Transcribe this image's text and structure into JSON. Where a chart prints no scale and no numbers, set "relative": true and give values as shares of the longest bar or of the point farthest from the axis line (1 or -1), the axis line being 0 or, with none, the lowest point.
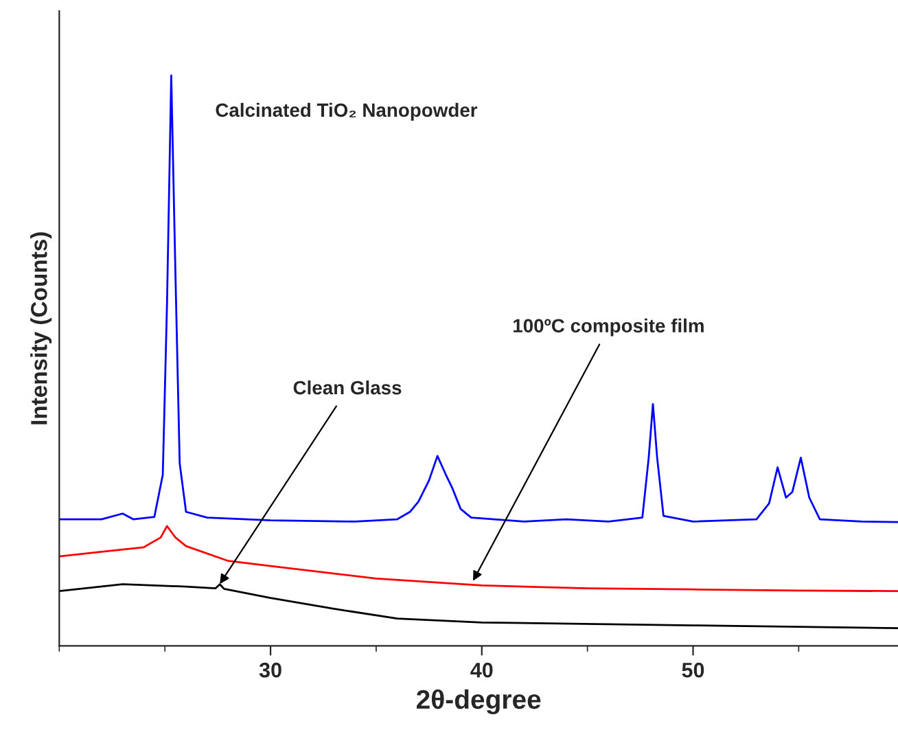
{
  "chart_data": {
    "type": "line",
    "relative": true,
    "xlabel": "2θ-degree",
    "ylabel": "Intensity (Counts)",
    "xlim": [
      20,
      59.7
    ],
    "xticks": [
      30,
      40,
      50
    ],
    "tick_labels": "x",
    "grid": false,
    "legend": false,
    "marker": "none",
    "line_style": "solid",
    "annotations": [
      {
        "text": "Clean Glass",
        "x": 27.5,
        "y": 0.103
      },
      {
        "text": "100ºC composite film",
        "x": 39.5,
        "y": 0.108
      }
    ],
    "series": [
      {
        "name": "Calcinated TiO₂ Nanopowder",
        "color": "#0000ff",
        "x": [
          20,
          22,
          23,
          23.5,
          24.5,
          24.9,
          25.1,
          25.3,
          25.5,
          25.7,
          26,
          27,
          30,
          34,
          36,
          36.6,
          37,
          37.5,
          37.9,
          38.3,
          38.6,
          39,
          39.5,
          42,
          44,
          46,
          47.6,
          47.9,
          48.1,
          48.3,
          48.6,
          50,
          53,
          53.6,
          54,
          54.4,
          54.7,
          55.1,
          55.5,
          56,
          58,
          59.7
        ],
        "values": [
          0.222,
          0.222,
          0.232,
          0.222,
          0.226,
          0.3,
          0.6,
          1.0,
          0.65,
          0.32,
          0.235,
          0.225,
          0.22,
          0.218,
          0.222,
          0.235,
          0.253,
          0.29,
          0.333,
          0.3,
          0.277,
          0.24,
          0.225,
          0.218,
          0.222,
          0.218,
          0.225,
          0.33,
          0.424,
          0.33,
          0.228,
          0.218,
          0.222,
          0.25,
          0.313,
          0.26,
          0.27,
          0.33,
          0.26,
          0.222,
          0.218,
          0.217
        ]
      },
      {
        "color": "#ff0000",
        "x": [
          20,
          22,
          24,
          24.8,
          25.1,
          25.5,
          26,
          28,
          30,
          35,
          40,
          45,
          50,
          55,
          59.7
        ],
        "values": [
          0.157,
          0.165,
          0.173,
          0.19,
          0.21,
          0.19,
          0.175,
          0.149,
          0.14,
          0.118,
          0.106,
          0.101,
          0.099,
          0.097,
          0.096
        ]
      },
      {
        "color": "#000000",
        "x": [
          20,
          23,
          26,
          27.4,
          27.6,
          27.8,
          30,
          33,
          36,
          40,
          50,
          59.7
        ],
        "values": [
          0.096,
          0.108,
          0.104,
          0.101,
          0.108,
          0.1,
          0.084,
          0.065,
          0.048,
          0.041,
          0.036,
          0.031
        ]
      }
    ]
  }
}
